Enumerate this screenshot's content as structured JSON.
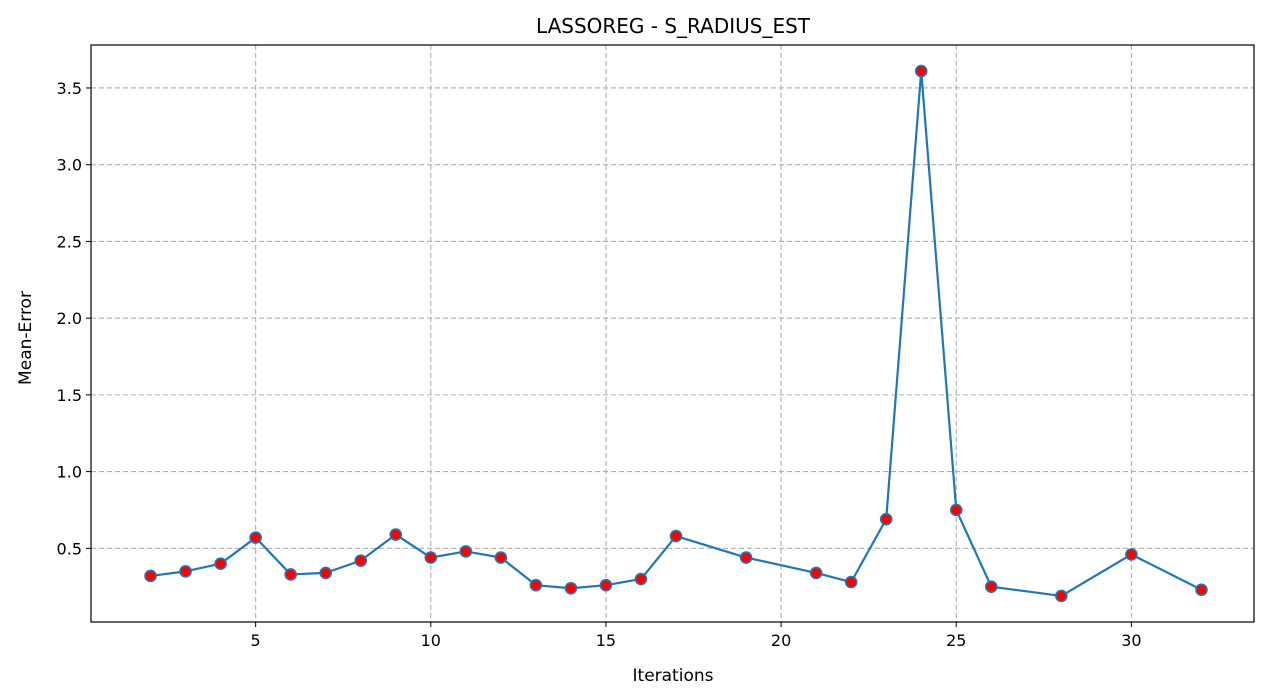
{
  "chart_data": {
    "type": "line",
    "title": "LASSOREG - S_RADIUS_EST",
    "xlabel": "Iterations",
    "ylabel": "Mean-Error",
    "xlim": [
      0.3,
      33.5
    ],
    "ylim": [
      0.02,
      3.78
    ],
    "xticks": [
      5,
      10,
      15,
      20,
      25,
      30
    ],
    "yticks": [
      0.5,
      1.0,
      1.5,
      2.0,
      2.5,
      3.0,
      3.5
    ],
    "grid": true,
    "line_color": "#1f77b4",
    "marker_color": "#ff0000",
    "marker_edge_color": "#1f77b4",
    "series": [
      {
        "x": [
          2,
          3,
          4,
          5,
          6,
          7,
          8,
          9,
          10,
          11,
          12,
          13,
          14,
          15,
          16,
          17,
          19,
          21,
          22,
          23,
          24,
          25,
          26,
          28,
          30,
          32
        ],
        "y": [
          0.32,
          0.35,
          0.4,
          0.57,
          0.33,
          0.34,
          0.42,
          0.59,
          0.44,
          0.48,
          0.44,
          0.26,
          0.24,
          0.26,
          0.3,
          0.58,
          0.44,
          0.34,
          0.28,
          0.69,
          3.61,
          0.75,
          0.25,
          0.19,
          0.46,
          0.23
        ]
      }
    ]
  }
}
